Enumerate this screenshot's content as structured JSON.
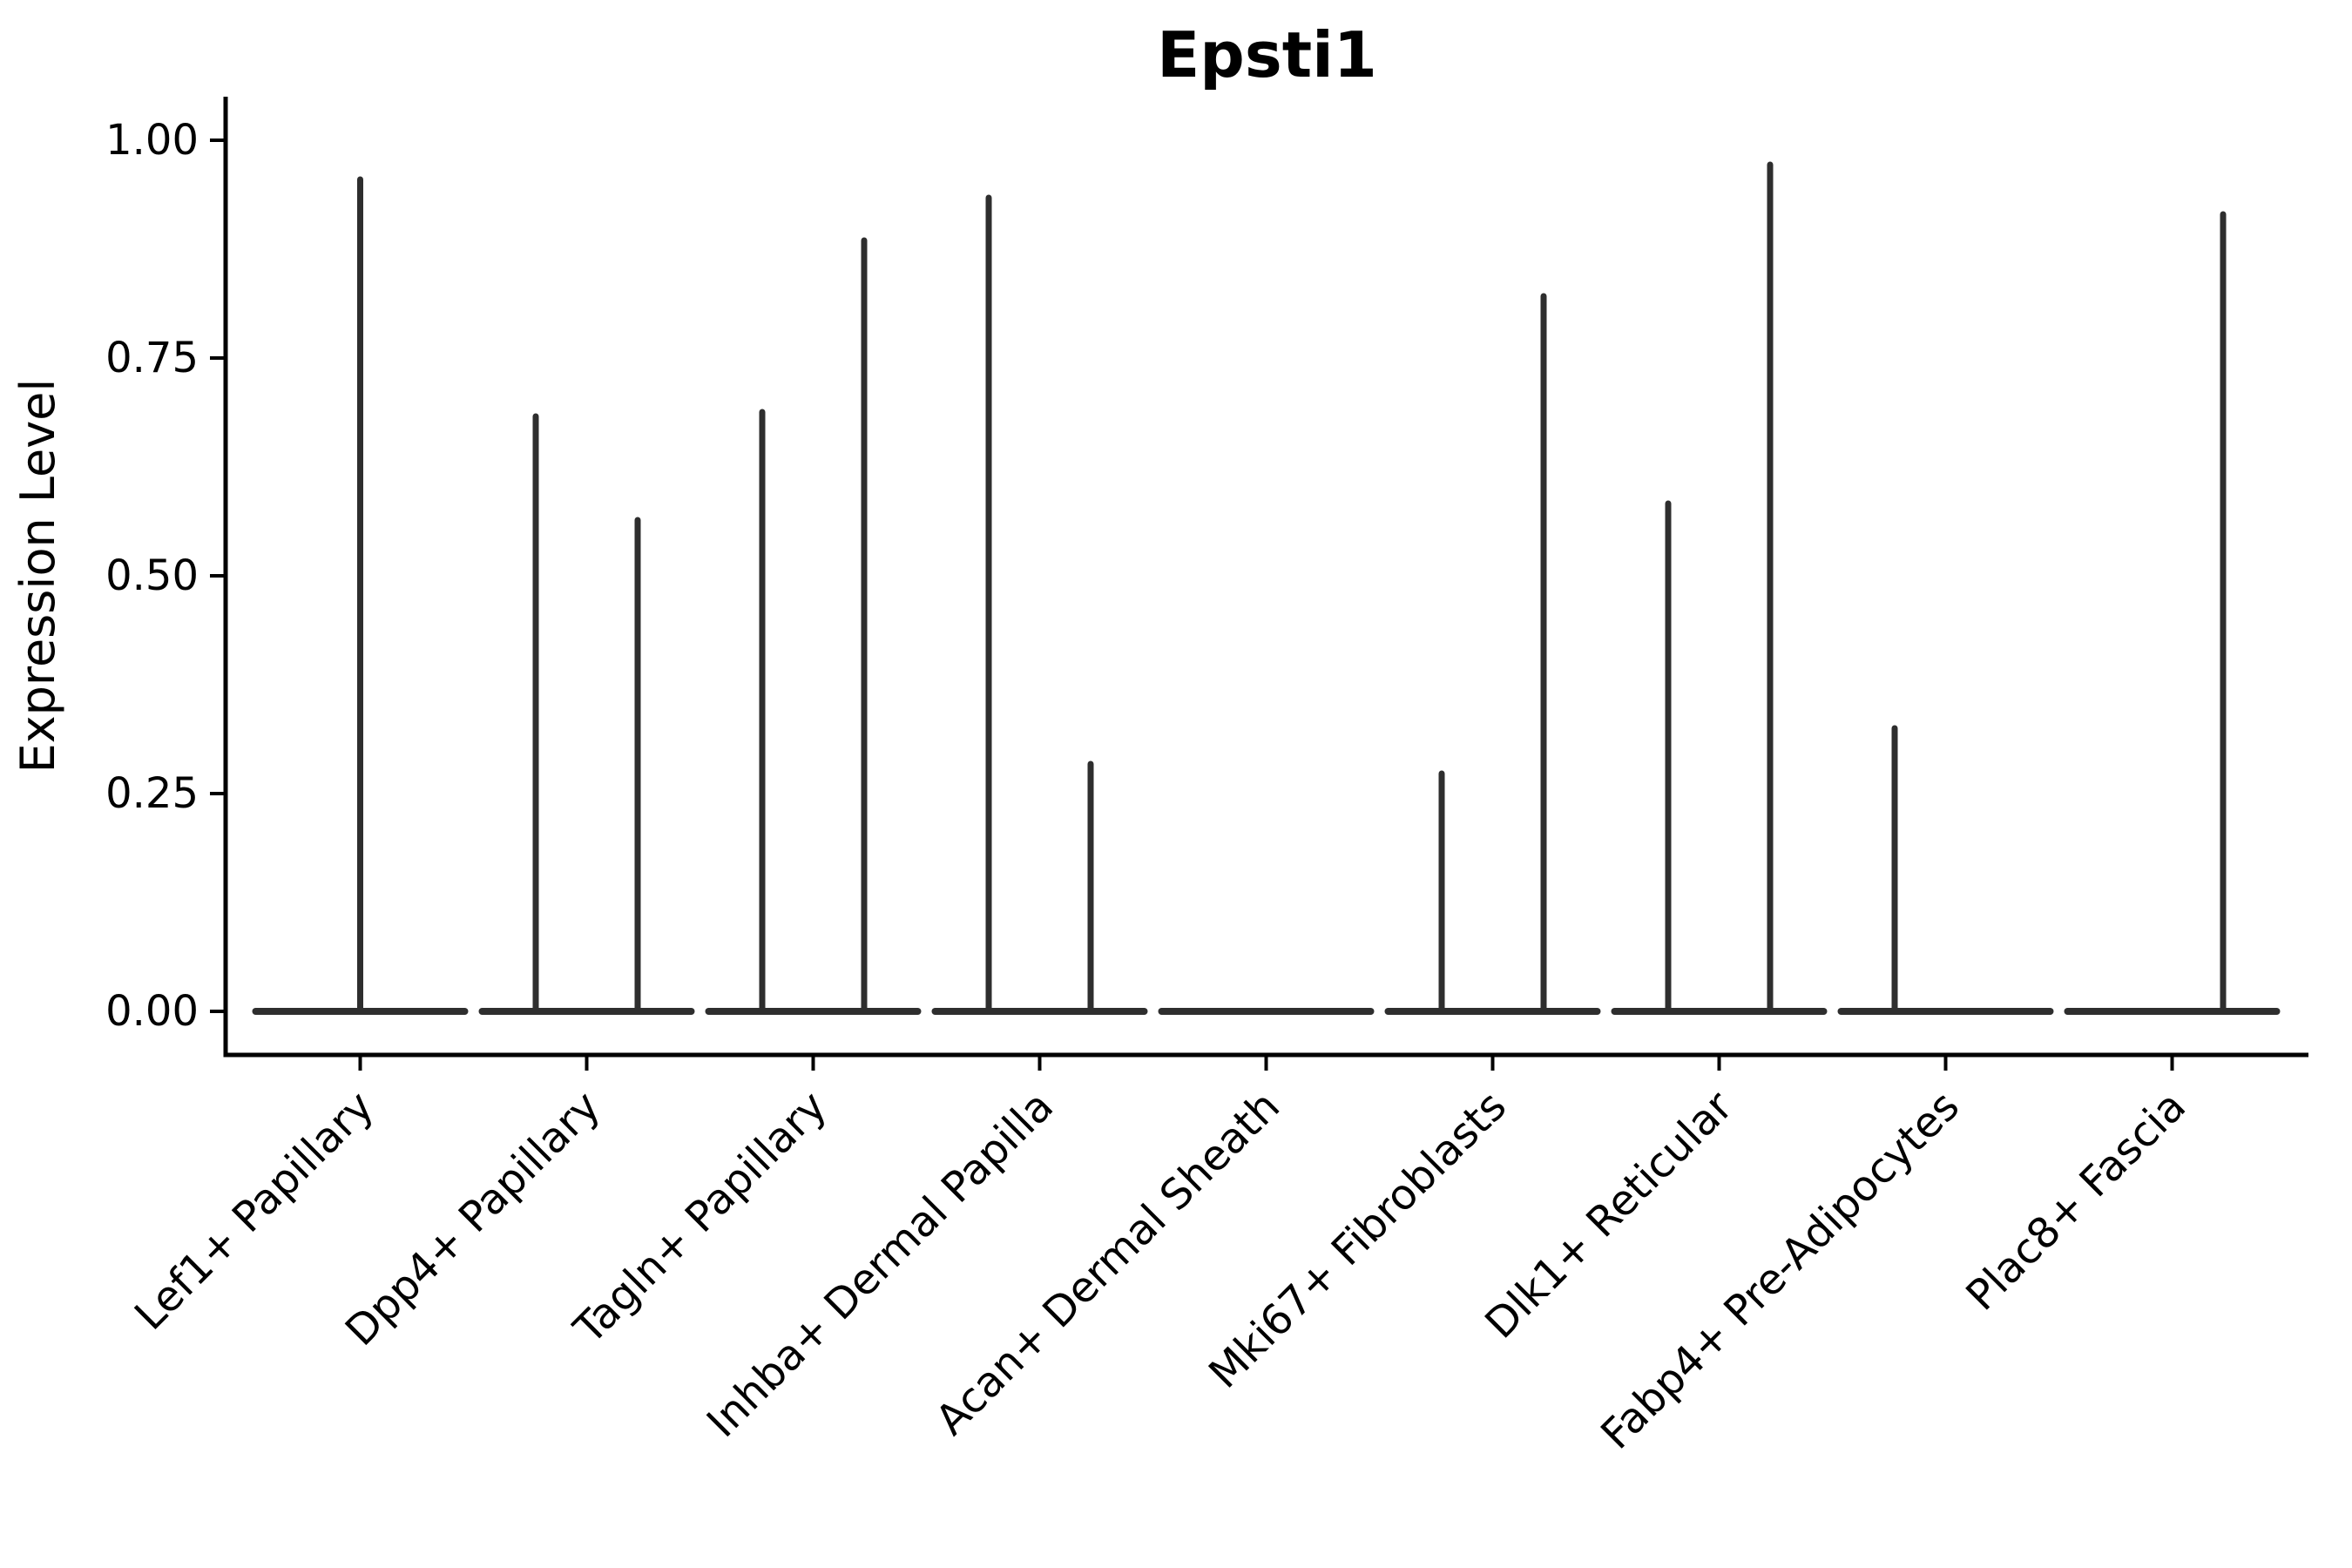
{
  "page": {
    "background": "#ffffff"
  },
  "chart_data": {
    "type": "violin",
    "title": "Epsti1",
    "xlabel": "",
    "ylabel": "Expression Level",
    "ylim": [
      0,
      1
    ],
    "grid": false,
    "legend_position": "none",
    "x_tick_rotation_deg": 45,
    "yticks": [
      {
        "value": 0.0,
        "label": "0.00"
      },
      {
        "value": 0.25,
        "label": "0.25"
      },
      {
        "value": 0.5,
        "label": "0.50"
      },
      {
        "value": 0.75,
        "label": "0.75"
      },
      {
        "value": 1.0,
        "label": "1.00"
      }
    ],
    "categories": [
      "Lef1+ Papillary",
      "Dpp4+ Papillary",
      "Tagln+ Papillary",
      "Inhba+ Dermal Papilla",
      "Acan+ Dermal Sheath",
      "Mki67+ Fibroblasts",
      "Dlk1+ Reticular",
      "Fabp4+ Pre-Adipocytes",
      "Plac8+ Fascia"
    ],
    "violins": [
      {
        "category": "Lef1+ Papillary",
        "baseline_value": 0.0,
        "spikes": [
          {
            "position": "center",
            "max": 0.955
          }
        ]
      },
      {
        "category": "Dpp4+ Papillary",
        "baseline_value": 0.0,
        "spikes": [
          {
            "position": "left",
            "max": 0.683
          },
          {
            "position": "right",
            "max": 0.564
          }
        ]
      },
      {
        "category": "Tagln+ Papillary",
        "baseline_value": 0.0,
        "spikes": [
          {
            "position": "left",
            "max": 0.688
          },
          {
            "position": "right",
            "max": 0.885
          }
        ]
      },
      {
        "category": "Inhba+ Dermal Papilla",
        "baseline_value": 0.0,
        "spikes": [
          {
            "position": "left",
            "max": 0.934
          },
          {
            "position": "right",
            "max": 0.284
          }
        ]
      },
      {
        "category": "Acan+ Dermal Sheath",
        "baseline_value": 0.0,
        "spikes": []
      },
      {
        "category": "Mki67+ Fibroblasts",
        "baseline_value": 0.0,
        "spikes": [
          {
            "position": "left",
            "max": 0.273
          },
          {
            "position": "right",
            "max": 0.821
          }
        ]
      },
      {
        "category": "Dlk1+ Reticular",
        "baseline_value": 0.0,
        "spikes": [
          {
            "position": "left",
            "max": 0.583
          },
          {
            "position": "right",
            "max": 0.972
          }
        ]
      },
      {
        "category": "Fabp4+ Pre-Adipocytes",
        "baseline_value": 0.0,
        "spikes": [
          {
            "position": "left",
            "max": 0.325
          }
        ]
      },
      {
        "category": "Plac8+ Fascia",
        "baseline_value": 0.0,
        "spikes": [
          {
            "position": "right",
            "max": 0.915
          }
        ]
      }
    ],
    "style": {
      "violin_color": "#2e2e2e",
      "axis_color": "#000000",
      "text_color": "#000000",
      "background": "#ffffff"
    }
  }
}
